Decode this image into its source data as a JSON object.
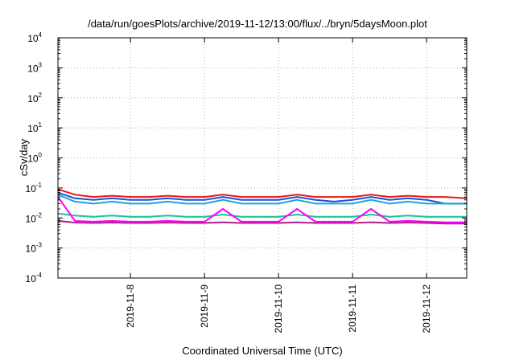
{
  "chart_data": {
    "type": "line",
    "title": "/data/run/goesPlots/archive/2019-11-12/13:00/flux/../bryn/5daysMoon.plot",
    "xlabel": "Coordinated Universal Time (UTC)",
    "ylabel": "cSv/day",
    "yscale": "log",
    "ylim": [
      0.0001,
      10000
    ],
    "xlim": [
      "2019-11-07 00:30",
      "2019-11-12 13:00"
    ],
    "grid": true,
    "legend": "none",
    "y_ticks": [
      {
        "base": "10",
        "exp": "-4",
        "value": 0.0001
      },
      {
        "base": "10",
        "exp": "-3",
        "value": 0.001
      },
      {
        "base": "10",
        "exp": "-2",
        "value": 0.01
      },
      {
        "base": "10",
        "exp": "-1",
        "value": 0.1
      },
      {
        "base": "10",
        "exp": "0",
        "value": 1
      },
      {
        "base": "10",
        "exp": "1",
        "value": 10
      },
      {
        "base": "10",
        "exp": "2",
        "value": 100
      },
      {
        "base": "10",
        "exp": "3",
        "value": 1000
      },
      {
        "base": "10",
        "exp": "4",
        "value": 10000
      }
    ],
    "x_ticks": [
      "2019-11-8",
      "2019-11-9",
      "2019-11-10",
      "2019-11-11",
      "2019-11-12"
    ],
    "x_tick_times": [
      "2019-11-08 00:00",
      "2019-11-09 00:00",
      "2019-11-10 00:00",
      "2019-11-11 00:00",
      "2019-11-12 00:00"
    ],
    "series": [
      {
        "color": "#e41a1c",
        "x": [
          "2019-11-07 00:30",
          "2019-11-07 06:00",
          "2019-11-07 12:00",
          "2019-11-07 18:00",
          "2019-11-08 00:00",
          "2019-11-08 06:00",
          "2019-11-08 12:00",
          "2019-11-08 18:00",
          "2019-11-09 00:00",
          "2019-11-09 06:00",
          "2019-11-09 12:00",
          "2019-11-09 18:00",
          "2019-11-10 00:00",
          "2019-11-10 06:00",
          "2019-11-10 12:00",
          "2019-11-10 18:00",
          "2019-11-11 00:00",
          "2019-11-11 06:00",
          "2019-11-11 12:00",
          "2019-11-11 18:00",
          "2019-11-12 00:00",
          "2019-11-12 06:00",
          "2019-11-12 13:00"
        ],
        "values": [
          0.09,
          0.06,
          0.05,
          0.055,
          0.05,
          0.05,
          0.055,
          0.05,
          0.05,
          0.06,
          0.05,
          0.05,
          0.05,
          0.06,
          0.05,
          0.05,
          0.05,
          0.06,
          0.05,
          0.055,
          0.05,
          0.05,
          0.045
        ]
      },
      {
        "color": "#1f4fd6",
        "x": [
          "2019-11-07 00:30",
          "2019-11-07 06:00",
          "2019-11-07 12:00",
          "2019-11-07 18:00",
          "2019-11-08 00:00",
          "2019-11-08 06:00",
          "2019-11-08 12:00",
          "2019-11-08 18:00",
          "2019-11-09 00:00",
          "2019-11-09 06:00",
          "2019-11-09 12:00",
          "2019-11-09 18:00",
          "2019-11-10 00:00",
          "2019-11-10 06:00",
          "2019-11-10 12:00",
          "2019-11-10 18:00",
          "2019-11-11 00:00",
          "2019-11-11 06:00",
          "2019-11-11 12:00",
          "2019-11-11 18:00",
          "2019-11-12 00:00",
          "2019-11-12 06:00",
          "2019-11-12 13:00"
        ],
        "values": [
          0.07,
          0.045,
          0.04,
          0.045,
          0.04,
          0.04,
          0.045,
          0.04,
          0.04,
          0.05,
          0.04,
          0.04,
          0.04,
          0.05,
          0.04,
          0.035,
          0.04,
          0.05,
          0.04,
          0.045,
          0.04,
          0.03,
          0.03
        ]
      },
      {
        "color": "#1aa6d9",
        "x": [
          "2019-11-07 00:30",
          "2019-11-07 06:00",
          "2019-11-07 12:00",
          "2019-11-07 18:00",
          "2019-11-08 00:00",
          "2019-11-08 06:00",
          "2019-11-08 12:00",
          "2019-11-08 18:00",
          "2019-11-09 00:00",
          "2019-11-09 06:00",
          "2019-11-09 12:00",
          "2019-11-09 18:00",
          "2019-11-10 00:00",
          "2019-11-10 06:00",
          "2019-11-10 12:00",
          "2019-11-10 18:00",
          "2019-11-11 00:00",
          "2019-11-11 06:00",
          "2019-11-11 12:00",
          "2019-11-11 18:00",
          "2019-11-12 00:00",
          "2019-11-12 06:00",
          "2019-11-12 13:00"
        ],
        "values": [
          0.06,
          0.035,
          0.03,
          0.035,
          0.03,
          0.03,
          0.035,
          0.03,
          0.03,
          0.04,
          0.03,
          0.03,
          0.03,
          0.04,
          0.03,
          0.03,
          0.03,
          0.04,
          0.03,
          0.035,
          0.03,
          0.03,
          0.03
        ]
      },
      {
        "color": "#17c49a",
        "x": [
          "2019-11-07 00:30",
          "2019-11-07 06:00",
          "2019-11-07 12:00",
          "2019-11-07 18:00",
          "2019-11-08 00:00",
          "2019-11-08 06:00",
          "2019-11-08 12:00",
          "2019-11-08 18:00",
          "2019-11-09 00:00",
          "2019-11-09 06:00",
          "2019-11-09 12:00",
          "2019-11-09 18:00",
          "2019-11-10 00:00",
          "2019-11-10 06:00",
          "2019-11-10 12:00",
          "2019-11-10 18:00",
          "2019-11-11 00:00",
          "2019-11-11 06:00",
          "2019-11-11 12:00",
          "2019-11-11 18:00",
          "2019-11-12 00:00",
          "2019-11-12 06:00",
          "2019-11-12 13:00"
        ],
        "values": [
          0.014,
          0.012,
          0.011,
          0.012,
          0.011,
          0.011,
          0.012,
          0.011,
          0.011,
          0.013,
          0.011,
          0.011,
          0.011,
          0.013,
          0.011,
          0.011,
          0.011,
          0.013,
          0.011,
          0.012,
          0.011,
          0.011,
          0.011
        ]
      },
      {
        "color": "#b0208a",
        "x": [
          "2019-11-07 00:30",
          "2019-11-07 06:00",
          "2019-11-07 12:00",
          "2019-11-07 18:00",
          "2019-11-08 00:00",
          "2019-11-08 06:00",
          "2019-11-08 12:00",
          "2019-11-08 18:00",
          "2019-11-09 00:00",
          "2019-11-09 06:00",
          "2019-11-09 12:00",
          "2019-11-09 18:00",
          "2019-11-10 00:00",
          "2019-11-10 06:00",
          "2019-11-10 12:00",
          "2019-11-10 18:00",
          "2019-11-11 00:00",
          "2019-11-11 06:00",
          "2019-11-11 12:00",
          "2019-11-11 18:00",
          "2019-11-12 00:00",
          "2019-11-12 06:00",
          "2019-11-12 13:00"
        ],
        "values": [
          0.008,
          0.007,
          0.0068,
          0.007,
          0.0068,
          0.0068,
          0.007,
          0.0068,
          0.0068,
          0.0072,
          0.0068,
          0.0068,
          0.0068,
          0.0072,
          0.0068,
          0.0068,
          0.0068,
          0.0072,
          0.0068,
          0.007,
          0.0068,
          0.0065,
          0.0065
        ]
      },
      {
        "color": "#ff00ff",
        "x": [
          "2019-11-07 00:30",
          "2019-11-07 06:00",
          "2019-11-07 12:00",
          "2019-11-07 18:00",
          "2019-11-08 00:00",
          "2019-11-08 06:00",
          "2019-11-08 12:00",
          "2019-11-08 18:00",
          "2019-11-09 00:00",
          "2019-11-09 06:00",
          "2019-11-09 12:00",
          "2019-11-09 18:00",
          "2019-11-10 00:00",
          "2019-11-10 06:00",
          "2019-11-10 12:00",
          "2019-11-10 18:00",
          "2019-11-11 00:00",
          "2019-11-11 06:00",
          "2019-11-11 12:00",
          "2019-11-11 18:00",
          "2019-11-12 00:00",
          "2019-11-12 06:00",
          "2019-11-12 13:00"
        ],
        "values": [
          0.05,
          0.008,
          0.0075,
          0.008,
          0.0075,
          0.0075,
          0.008,
          0.0075,
          0.0075,
          0.02,
          0.0075,
          0.0075,
          0.0075,
          0.02,
          0.0075,
          0.0075,
          0.0075,
          0.02,
          0.0075,
          0.008,
          0.0075,
          0.0072,
          0.0072
        ]
      }
    ]
  }
}
